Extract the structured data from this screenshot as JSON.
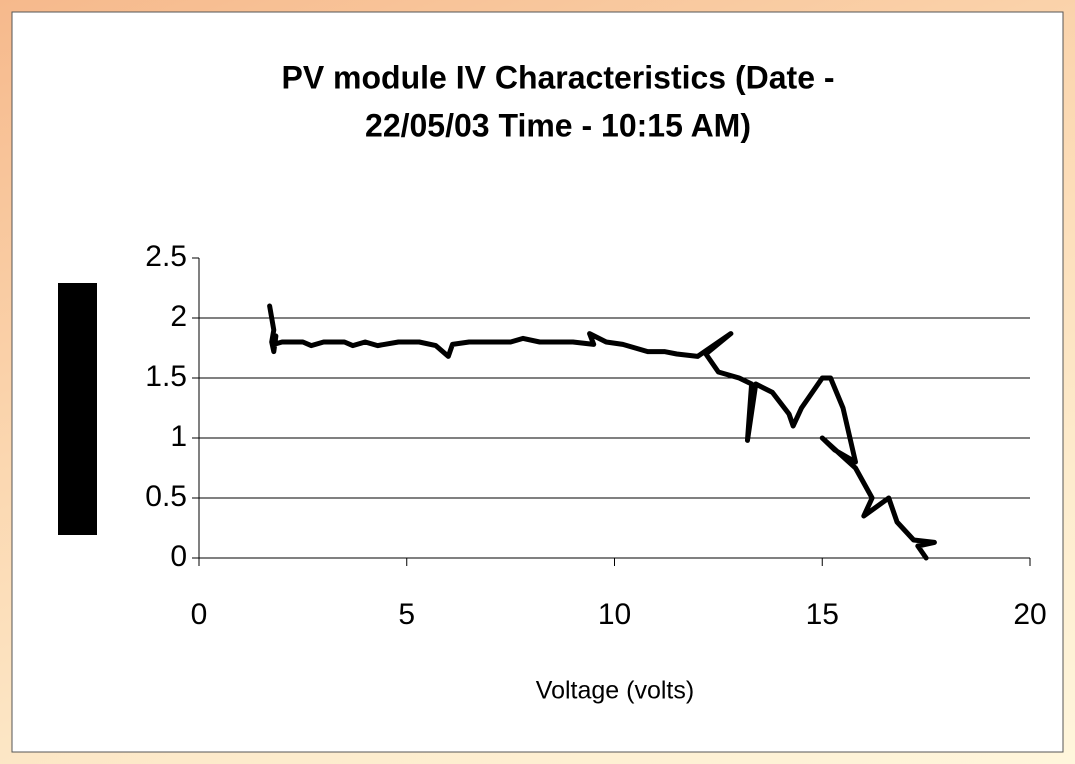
{
  "chart_data": {
    "type": "line",
    "title": [
      "PV module IV Characteristics (Date -",
      "22/05/03 Time - 10:15 AM)"
    ],
    "x_label": "Voltage (volts)",
    "xlim": [
      0,
      20
    ],
    "xticks": [
      0,
      5,
      10,
      15,
      20
    ],
    "ylim": [
      0,
      2.5
    ],
    "yticks": [
      0,
      0.5,
      1,
      1.5,
      2,
      2.5
    ],
    "grid": true,
    "series": [
      {
        "color": "#000000",
        "x": [
          1.7,
          1.8,
          1.75,
          1.8,
          1.85,
          1.8,
          2,
          2.5,
          2.7,
          3,
          3.5,
          3.7,
          4,
          4.3,
          4.8,
          5.3,
          5.7,
          6,
          6.1,
          6.5,
          7.5,
          7.8,
          8.2,
          9,
          9.5,
          9.4,
          9.8,
          10.2,
          10.5,
          10.8,
          11.2,
          11.5,
          12,
          12.8,
          12.2,
          12.5,
          13,
          13.3,
          13.2,
          13.4,
          13.8,
          14.2,
          14.3,
          14.5,
          15,
          15.2,
          15.5,
          15.8,
          15.3,
          15,
          15.8,
          16.2,
          16,
          16.6,
          16.8,
          17.2,
          17.7,
          17.3,
          17.5
        ],
        "values": [
          2.1,
          1.9,
          1.8,
          1.72,
          1.85,
          1.78,
          1.8,
          1.8,
          1.77,
          1.8,
          1.8,
          1.77,
          1.8,
          1.77,
          1.8,
          1.8,
          1.77,
          1.68,
          1.78,
          1.8,
          1.8,
          1.83,
          1.8,
          1.8,
          1.78,
          1.87,
          1.8,
          1.78,
          1.75,
          1.72,
          1.72,
          1.7,
          1.68,
          1.87,
          1.7,
          1.55,
          1.5,
          1.45,
          0.98,
          1.45,
          1.38,
          1.2,
          1.1,
          1.25,
          1.5,
          1.5,
          1.25,
          0.8,
          0.9,
          1.0,
          0.75,
          0.5,
          0.35,
          0.5,
          0.3,
          0.15,
          0.13,
          0.1,
          0
        ]
      }
    ]
  }
}
